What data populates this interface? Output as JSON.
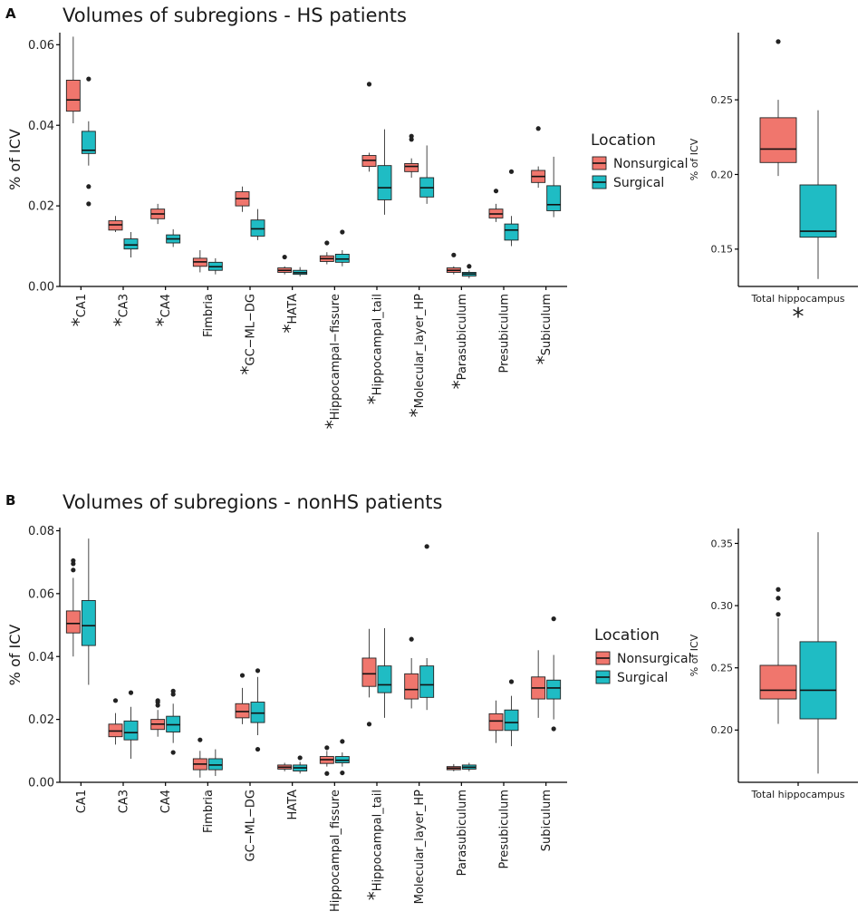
{
  "figure": {
    "panel_labels": [
      "A",
      "B"
    ],
    "colors": {
      "Nonsurgical": "#f0766d",
      "Surgical": "#1fbcc4"
    }
  },
  "chart_data": [
    {
      "id": "A-main",
      "type": "boxplot",
      "title": "Volumes of subregions - HS patients",
      "ylabel": "% of ICV",
      "ylim": [
        0,
        0.063
      ],
      "yticks": [
        "0.00",
        "0.02",
        "0.04",
        "0.06"
      ],
      "ytick_values": [
        0,
        0.02,
        0.04,
        0.06
      ],
      "legend": {
        "title": "Location",
        "entries": [
          "Nonsurgical",
          "Surgical"
        ],
        "placement": "right"
      },
      "categories": [
        "*CA1",
        "*CA3",
        "*CA4",
        "Fimbria",
        "*GC−ML−DG",
        "*HATA",
        "*Hippocampal−fissure",
        "*Hippocampal_tail",
        "*Molecular_layer_HP",
        "*Parasubiculum",
        "Presubiculum",
        "*Subiculum"
      ],
      "series": [
        {
          "name": "Nonsurgical",
          "boxes": [
            {
              "wl": 0.0405,
              "q1": 0.0435,
              "med": 0.0463,
              "q3": 0.0512,
              "wh": 0.062,
              "out": []
            },
            {
              "wl": 0.0135,
              "q1": 0.014,
              "med": 0.0153,
              "q3": 0.0163,
              "wh": 0.0175,
              "out": []
            },
            {
              "wl": 0.0155,
              "q1": 0.0168,
              "med": 0.018,
              "q3": 0.0192,
              "wh": 0.0205,
              "out": []
            },
            {
              "wl": 0.0035,
              "q1": 0.005,
              "med": 0.0061,
              "q3": 0.007,
              "wh": 0.009,
              "out": []
            },
            {
              "wl": 0.0185,
              "q1": 0.02,
              "med": 0.0218,
              "q3": 0.0235,
              "wh": 0.0248,
              "out": []
            },
            {
              "wl": 0.003,
              "q1": 0.0035,
              "med": 0.004,
              "q3": 0.0046,
              "wh": 0.005,
              "out": [
                0.0073
              ]
            },
            {
              "wl": 0.0055,
              "q1": 0.0062,
              "med": 0.0069,
              "q3": 0.0076,
              "wh": 0.0085,
              "out": [
                0.0108
              ]
            },
            {
              "wl": 0.0285,
              "q1": 0.0298,
              "med": 0.0313,
              "q3": 0.0325,
              "wh": 0.0332,
              "out": [
                0.0502
              ]
            },
            {
              "wl": 0.027,
              "q1": 0.0285,
              "med": 0.0298,
              "q3": 0.0305,
              "wh": 0.0318,
              "out": [
                0.0365,
                0.0373
              ]
            },
            {
              "wl": 0.003,
              "q1": 0.0035,
              "med": 0.004,
              "q3": 0.0046,
              "wh": 0.005,
              "out": [
                0.0078
              ]
            },
            {
              "wl": 0.016,
              "q1": 0.017,
              "med": 0.018,
              "q3": 0.0192,
              "wh": 0.0205,
              "out": [
                0.0237
              ]
            },
            {
              "wl": 0.0245,
              "q1": 0.0258,
              "med": 0.0273,
              "q3": 0.0288,
              "wh": 0.0298,
              "out": [
                0.0392
              ]
            }
          ]
        },
        {
          "name": "Surgical",
          "boxes": [
            {
              "wl": 0.03,
              "q1": 0.033,
              "med": 0.0338,
              "q3": 0.0385,
              "wh": 0.041,
              "out": [
                0.0515,
                0.0248,
                0.0205
              ]
            },
            {
              "wl": 0.0072,
              "q1": 0.0093,
              "med": 0.0103,
              "q3": 0.0118,
              "wh": 0.0135,
              "out": []
            },
            {
              "wl": 0.0098,
              "q1": 0.0108,
              "med": 0.0118,
              "q3": 0.0128,
              "wh": 0.0142,
              "out": []
            },
            {
              "wl": 0.003,
              "q1": 0.004,
              "med": 0.0049,
              "q3": 0.006,
              "wh": 0.007,
              "out": []
            },
            {
              "wl": 0.0115,
              "q1": 0.0125,
              "med": 0.0143,
              "q3": 0.0165,
              "wh": 0.0192,
              "out": []
            },
            {
              "wl": 0.0025,
              "q1": 0.003,
              "med": 0.0034,
              "q3": 0.004,
              "wh": 0.0048,
              "out": []
            },
            {
              "wl": 0.005,
              "q1": 0.006,
              "med": 0.0068,
              "q3": 0.008,
              "wh": 0.009,
              "out": [
                0.0135
              ]
            },
            {
              "wl": 0.0178,
              "q1": 0.0215,
              "med": 0.0245,
              "q3": 0.03,
              "wh": 0.039,
              "out": []
            },
            {
              "wl": 0.0205,
              "q1": 0.0222,
              "med": 0.0245,
              "q3": 0.027,
              "wh": 0.035,
              "out": []
            },
            {
              "wl": 0.002,
              "q1": 0.0026,
              "med": 0.0031,
              "q3": 0.0035,
              "wh": 0.004,
              "out": [
                0.005
              ]
            },
            {
              "wl": 0.01,
              "q1": 0.0115,
              "med": 0.014,
              "q3": 0.0155,
              "wh": 0.0175,
              "out": [
                0.0285
              ]
            },
            {
              "wl": 0.0172,
              "q1": 0.0188,
              "med": 0.0203,
              "q3": 0.025,
              "wh": 0.0322,
              "out": []
            }
          ]
        }
      ]
    },
    {
      "id": "A-total",
      "type": "boxplot",
      "ylabel": "% of ICV",
      "ylim": [
        0.125,
        0.295
      ],
      "yticks": [
        "0.15",
        "0.20",
        "0.25"
      ],
      "ytick_values": [
        0.15,
        0.2,
        0.25
      ],
      "categories": [
        "Total hippocampus"
      ],
      "annotation": "*",
      "series": [
        {
          "name": "Nonsurgical",
          "boxes": [
            {
              "wl": 0.199,
              "q1": 0.208,
              "med": 0.217,
              "q3": 0.238,
              "wh": 0.25,
              "out": [
                0.289
              ]
            }
          ]
        },
        {
          "name": "Surgical",
          "boxes": [
            {
              "wl": 0.13,
              "q1": 0.158,
              "med": 0.162,
              "q3": 0.193,
              "wh": 0.243,
              "out": []
            }
          ]
        }
      ]
    },
    {
      "id": "B-main",
      "type": "boxplot",
      "title": "Volumes of subregions - nonHS patients",
      "ylabel": "% of ICV",
      "ylim": [
        0,
        0.081
      ],
      "yticks": [
        "0.00",
        "0.02",
        "0.04",
        "0.06",
        "0.08"
      ],
      "ytick_values": [
        0,
        0.02,
        0.04,
        0.06,
        0.08
      ],
      "legend": {
        "title": "Location",
        "entries": [
          "Nonsurgical",
          "Surgical"
        ],
        "placement": "right"
      },
      "categories": [
        "CA1",
        "CA3",
        "CA4",
        "Fimbria",
        "GC−ML−DG",
        "HATA",
        "Hippocampal_fissure",
        "*Hippocampal_tail",
        "Molecular_layer_HP",
        "Parasubiculum",
        "Presubiculum",
        "Subiculum"
      ],
      "series": [
        {
          "name": "Nonsurgical",
          "boxes": [
            {
              "wl": 0.04,
              "q1": 0.0475,
              "med": 0.0505,
              "q3": 0.0545,
              "wh": 0.065,
              "out": [
                0.0675,
                0.0695,
                0.0705
              ]
            },
            {
              "wl": 0.012,
              "q1": 0.0145,
              "med": 0.0163,
              "q3": 0.0185,
              "wh": 0.022,
              "out": [
                0.026
              ]
            },
            {
              "wl": 0.0145,
              "q1": 0.0168,
              "med": 0.0185,
              "q3": 0.02,
              "wh": 0.023,
              "out": [
                0.0245,
                0.0255,
                0.026
              ]
            },
            {
              "wl": 0.0015,
              "q1": 0.004,
              "med": 0.0058,
              "q3": 0.0075,
              "wh": 0.01,
              "out": [
                0.0135
              ]
            },
            {
              "wl": 0.0185,
              "q1": 0.0205,
              "med": 0.0225,
              "q3": 0.025,
              "wh": 0.03,
              "out": [
                0.034
              ]
            },
            {
              "wl": 0.0035,
              "q1": 0.0042,
              "med": 0.0048,
              "q3": 0.0055,
              "wh": 0.0062,
              "out": []
            },
            {
              "wl": 0.005,
              "q1": 0.006,
              "med": 0.0072,
              "q3": 0.0082,
              "wh": 0.01,
              "out": [
                0.0028,
                0.011
              ]
            },
            {
              "wl": 0.027,
              "q1": 0.0305,
              "med": 0.0345,
              "q3": 0.0395,
              "wh": 0.0488,
              "out": [
                0.0185
              ]
            },
            {
              "wl": 0.0235,
              "q1": 0.0265,
              "med": 0.0295,
              "q3": 0.0345,
              "wh": 0.0395,
              "out": [
                0.0455
              ]
            },
            {
              "wl": 0.0035,
              "q1": 0.004,
              "med": 0.0045,
              "q3": 0.005,
              "wh": 0.0058,
              "out": []
            },
            {
              "wl": 0.0125,
              "q1": 0.0165,
              "med": 0.0195,
              "q3": 0.0218,
              "wh": 0.026,
              "out": []
            },
            {
              "wl": 0.0205,
              "q1": 0.0265,
              "med": 0.03,
              "q3": 0.0335,
              "wh": 0.042,
              "out": []
            }
          ]
        },
        {
          "name": "Surgical",
          "boxes": [
            {
              "wl": 0.031,
              "q1": 0.0435,
              "med": 0.0498,
              "q3": 0.0578,
              "wh": 0.0775,
              "out": []
            },
            {
              "wl": 0.0075,
              "q1": 0.0135,
              "med": 0.0158,
              "q3": 0.0195,
              "wh": 0.024,
              "out": [
                0.0285
              ]
            },
            {
              "wl": 0.0125,
              "q1": 0.016,
              "med": 0.0183,
              "q3": 0.021,
              "wh": 0.025,
              "out": [
                0.0095,
                0.028,
                0.029
              ]
            },
            {
              "wl": 0.002,
              "q1": 0.004,
              "med": 0.0055,
              "q3": 0.0075,
              "wh": 0.0105,
              "out": []
            },
            {
              "wl": 0.015,
              "q1": 0.019,
              "med": 0.022,
              "q3": 0.0255,
              "wh": 0.0335,
              "out": [
                0.0105,
                0.0355
              ]
            },
            {
              "wl": 0.0028,
              "q1": 0.0036,
              "med": 0.0046,
              "q3": 0.0055,
              "wh": 0.0065,
              "out": [
                0.0078
              ]
            },
            {
              "wl": 0.005,
              "q1": 0.0062,
              "med": 0.007,
              "q3": 0.0082,
              "wh": 0.0095,
              "out": [
                0.003,
                0.013
              ]
            },
            {
              "wl": 0.0205,
              "q1": 0.0285,
              "med": 0.031,
              "q3": 0.037,
              "wh": 0.049,
              "out": []
            },
            {
              "wl": 0.023,
              "q1": 0.027,
              "med": 0.031,
              "q3": 0.037,
              "wh": 0.0395,
              "out": [
                0.075
              ]
            },
            {
              "wl": 0.0035,
              "q1": 0.0042,
              "med": 0.0048,
              "q3": 0.0055,
              "wh": 0.0062,
              "out": []
            },
            {
              "wl": 0.0115,
              "q1": 0.0165,
              "med": 0.019,
              "q3": 0.023,
              "wh": 0.0275,
              "out": [
                0.032
              ]
            },
            {
              "wl": 0.02,
              "q1": 0.0265,
              "med": 0.03,
              "q3": 0.0325,
              "wh": 0.0405,
              "out": [
                0.017,
                0.052
              ]
            }
          ]
        }
      ]
    },
    {
      "id": "B-total",
      "type": "boxplot",
      "ylabel": "% of ICV",
      "ylim": [
        0.158,
        0.362
      ],
      "yticks": [
        "0.20",
        "0.25",
        "0.30",
        "0.35"
      ],
      "ytick_values": [
        0.2,
        0.25,
        0.3,
        0.35
      ],
      "categories": [
        "Total hippocampus"
      ],
      "series": [
        {
          "name": "Nonsurgical",
          "boxes": [
            {
              "wl": 0.205,
              "q1": 0.225,
              "med": 0.232,
              "q3": 0.252,
              "wh": 0.29,
              "out": [
                0.293,
                0.306,
                0.313
              ]
            }
          ]
        },
        {
          "name": "Surgical",
          "boxes": [
            {
              "wl": 0.165,
              "q1": 0.209,
              "med": 0.232,
              "q3": 0.271,
              "wh": 0.359,
              "out": []
            }
          ]
        }
      ]
    }
  ]
}
